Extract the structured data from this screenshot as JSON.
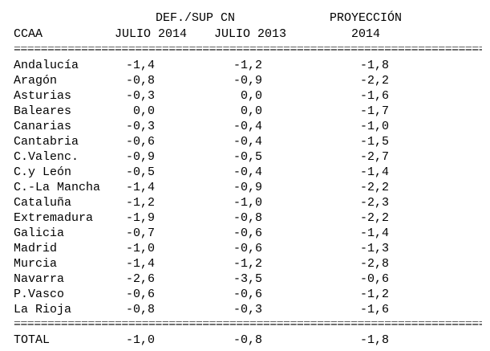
{
  "header": {
    "group_label": "DEF./SUP CN",
    "projection_label": "PROYECCIÓN",
    "ccaa_label": "CCAA",
    "col1_label": "JULIO 2014",
    "col2_label": "JULIO 2013",
    "col3_label": "2014"
  },
  "separator": "==========================================================================",
  "rows": [
    {
      "ccaa": "Andalucía",
      "jul2014": "-1,4",
      "jul2013": "-1,2",
      "proj2014": "-1,8"
    },
    {
      "ccaa": "Aragón",
      "jul2014": "-0,8",
      "jul2013": "-0,9",
      "proj2014": "-2,2"
    },
    {
      "ccaa": "Asturias",
      "jul2014": "-0,3",
      "jul2013": "0,0",
      "proj2014": "-1,6"
    },
    {
      "ccaa": "Baleares",
      "jul2014": "0,0",
      "jul2013": "0,0",
      "proj2014": "-1,7"
    },
    {
      "ccaa": "Canarias",
      "jul2014": "-0,3",
      "jul2013": "-0,4",
      "proj2014": "-1,0"
    },
    {
      "ccaa": "Cantabria",
      "jul2014": "-0,6",
      "jul2013": "-0,4",
      "proj2014": "-1,5"
    },
    {
      "ccaa": "C.Valenc.",
      "jul2014": "-0,9",
      "jul2013": "-0,5",
      "proj2014": "-2,7"
    },
    {
      "ccaa": "C.y León",
      "jul2014": "-0,5",
      "jul2013": "-0,4",
      "proj2014": "-1,4"
    },
    {
      "ccaa": "C.-La Mancha",
      "jul2014": "-1,4",
      "jul2013": "-0,9",
      "proj2014": "-2,2"
    },
    {
      "ccaa": "Cataluña",
      "jul2014": "-1,2",
      "jul2013": "-1,0",
      "proj2014": "-2,3"
    },
    {
      "ccaa": "Extremadura",
      "jul2014": "-1,9",
      "jul2013": "-0,8",
      "proj2014": "-2,2"
    },
    {
      "ccaa": "Galicia",
      "jul2014": "-0,7",
      "jul2013": "-0,6",
      "proj2014": "-1,4"
    },
    {
      "ccaa": "Madrid",
      "jul2014": "-1,0",
      "jul2013": "-0,6",
      "proj2014": "-1,3"
    },
    {
      "ccaa": "Murcia",
      "jul2014": "-1,4",
      "jul2013": "-1,2",
      "proj2014": "-2,8"
    },
    {
      "ccaa": "Navarra",
      "jul2014": "-2,6",
      "jul2013": "-3,5",
      "proj2014": "-0,6"
    },
    {
      "ccaa": "P.Vasco",
      "jul2014": "-0,6",
      "jul2013": "-0,6",
      "proj2014": "-1,2"
    },
    {
      "ccaa": "La Rioja",
      "jul2014": "-0,8",
      "jul2013": "-0,3",
      "proj2014": "-1,6"
    }
  ],
  "total": {
    "ccaa": "TOTAL",
    "jul2014": "-1,0",
    "jul2013": "-0,8",
    "proj2014": "-1,8"
  }
}
